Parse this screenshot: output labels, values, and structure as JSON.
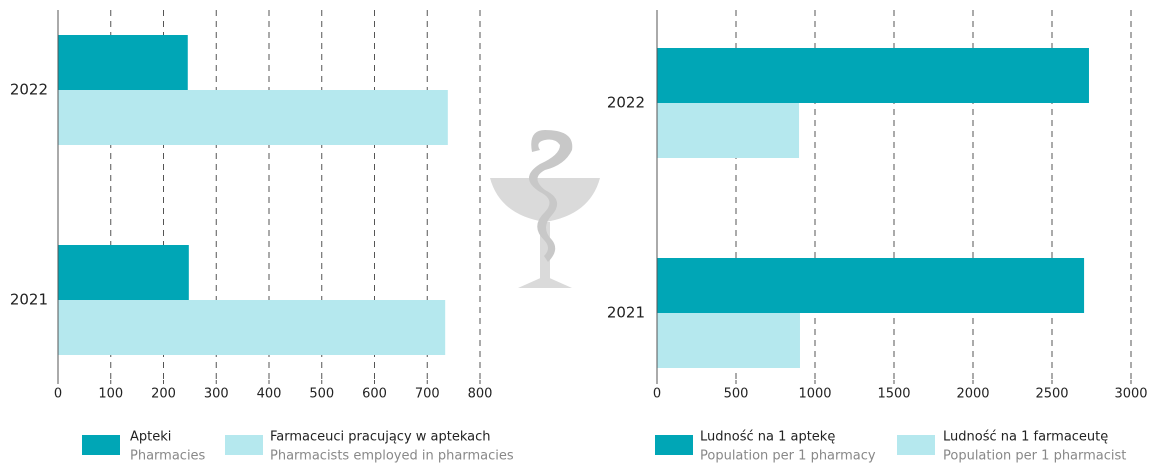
{
  "chart_data": [
    {
      "type": "bar",
      "orientation": "horizontal",
      "categories": [
        "2022",
        "2021"
      ],
      "series": [
        {
          "name": "Apteki",
          "name_en": "Pharmacies",
          "color": "#00a6b6",
          "values": [
            246,
            248
          ]
        },
        {
          "name": "Farmaceuci pracujący w aptekach",
          "name_en": "Pharmacists employed in pharmacies",
          "color": "#b5e8ee",
          "values": [
            739,
            734
          ]
        }
      ],
      "xlim": [
        0,
        800
      ],
      "xticks": [
        0,
        100,
        200,
        300,
        400,
        500,
        600,
        700,
        800
      ],
      "grid": true
    },
    {
      "type": "bar",
      "orientation": "horizontal",
      "categories": [
        "2022",
        "2021"
      ],
      "series": [
        {
          "name": "Ludność na 1 aptekę",
          "name_en": "Population per 1 pharmacy",
          "color": "#00a6b6",
          "values": [
            2734,
            2703
          ]
        },
        {
          "name": "Ludność na 1 farmaceutę",
          "name_en": "Population per 1 pharmacist",
          "color": "#b5e8ee",
          "values": [
            899,
            905
          ]
        }
      ],
      "xlim": [
        0,
        3000
      ],
      "xticks": [
        0,
        500,
        1000,
        1500,
        2000,
        2500,
        3000
      ],
      "grid": true
    }
  ]
}
